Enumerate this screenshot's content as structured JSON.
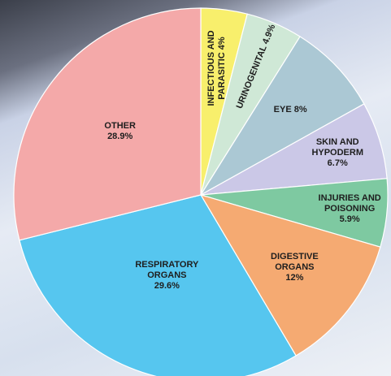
{
  "chart_data": {
    "type": "pie",
    "categories": [
      "INFECTIOUS AND PARASITIC",
      "URINOGENITAL",
      "EYE",
      "SKIN AND HYPODERM",
      "INJURIES AND POISONING",
      "DIGESTIVE ORGANS",
      "RESPIRATORY ORGANS",
      "OTHER"
    ],
    "values": [
      4,
      4.9,
      8,
      6.7,
      5.9,
      12,
      29.6,
      28.9
    ],
    "value_labels": [
      "4%",
      "4.9%",
      "8%",
      "6.7%",
      "5.9%",
      "12%",
      "29.6%",
      "28.9%"
    ],
    "colors": [
      "#f8ef6c",
      "#cfe8d6",
      "#abc8d4",
      "#cbc8e7",
      "#7ec9a1",
      "#f5aa72",
      "#56c6ef",
      "#f4a9a9"
    ]
  }
}
